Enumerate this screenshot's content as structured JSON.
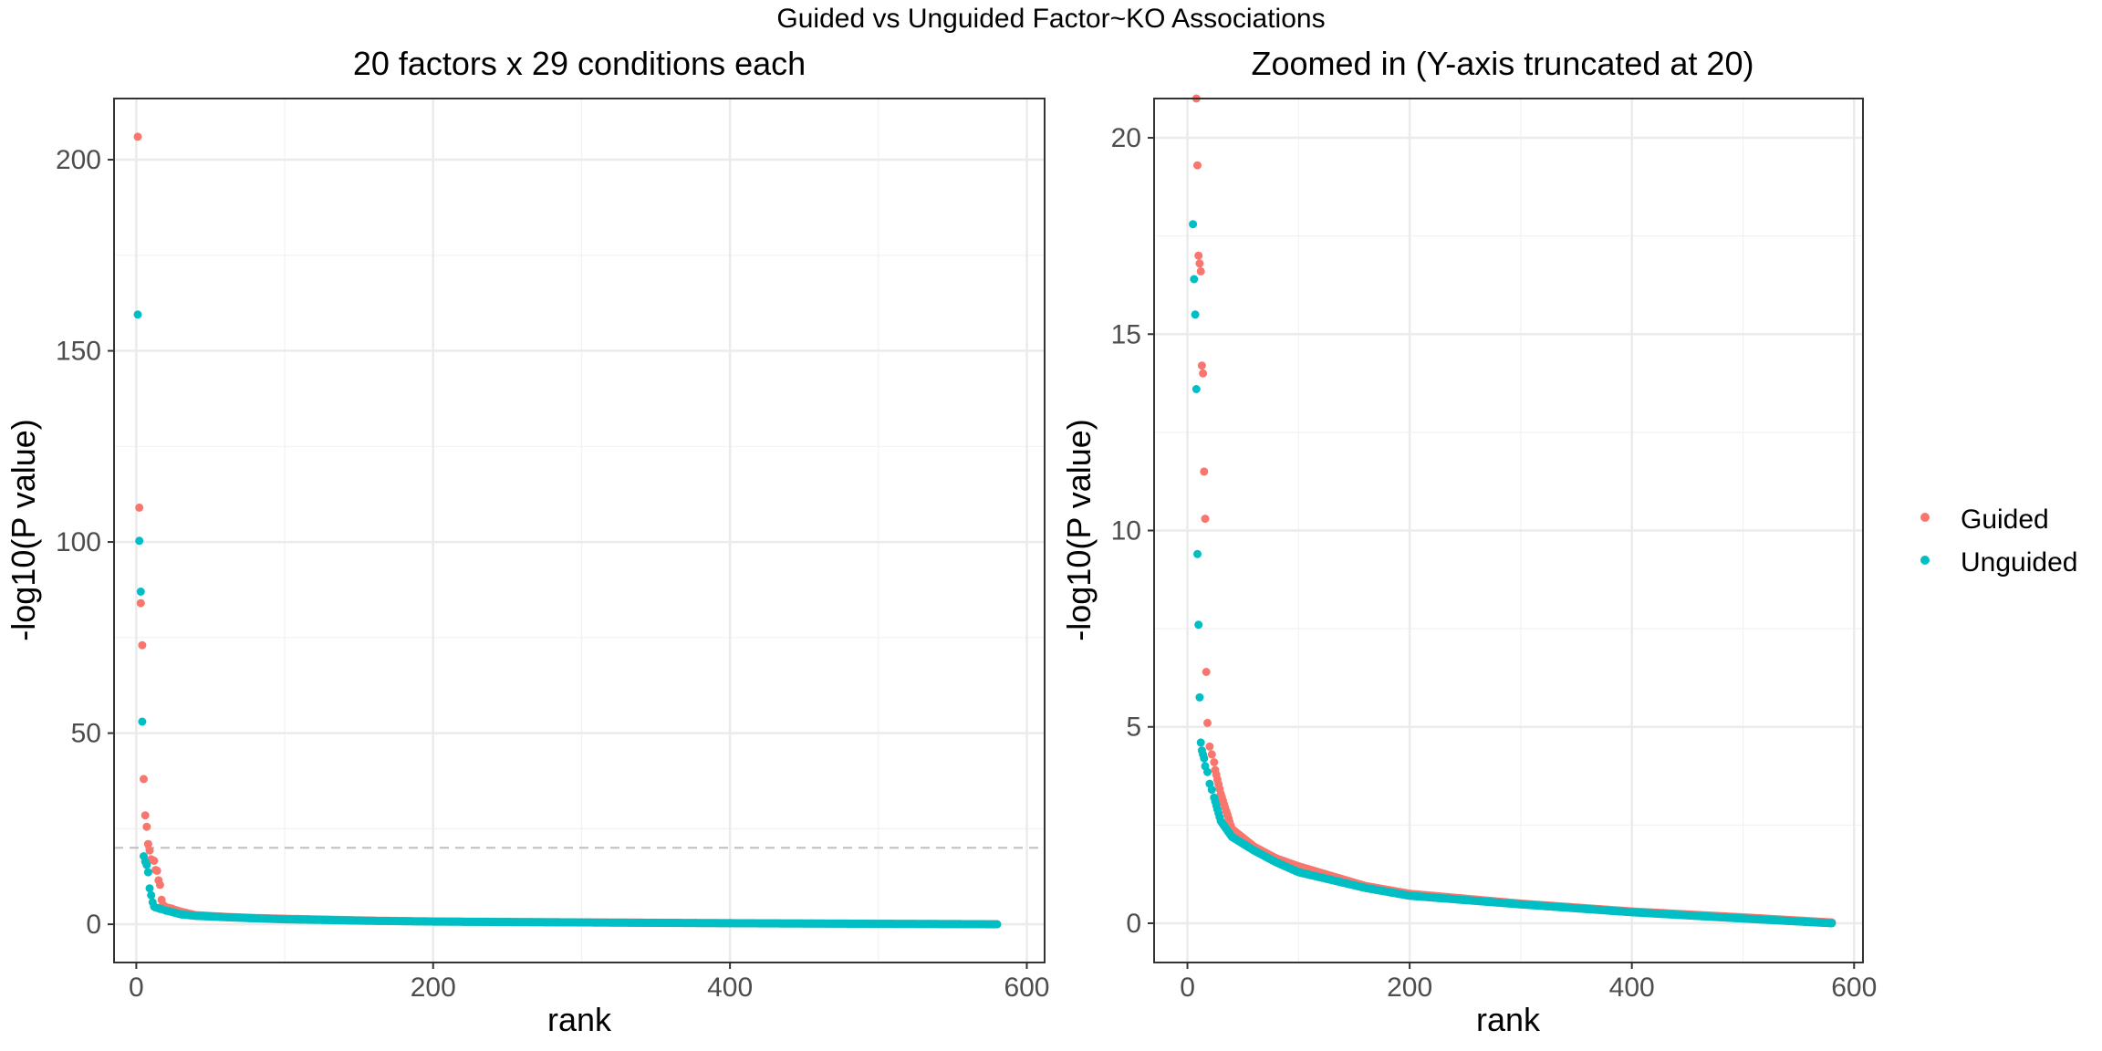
{
  "figure": {
    "title": "Guided vs Unguided Factor~KO Associations"
  },
  "legend": {
    "position": "right",
    "items": [
      {
        "label": "Guided",
        "color": "#F8766D"
      },
      {
        "label": "Unguided",
        "color": "#00BFC4"
      }
    ]
  },
  "chart_data": [
    {
      "type": "scatter",
      "title": "20 factors x 29 conditions each",
      "xlabel": "rank",
      "ylabel": "-log10(P value)",
      "xlim": [
        -15,
        612
      ],
      "ylim": [
        -10,
        216
      ],
      "xticks": [
        0,
        200,
        400,
        600
      ],
      "yticks": [
        0,
        50,
        100,
        150,
        200
      ],
      "grid": true,
      "reference_line": {
        "y": 20,
        "style": "dashed",
        "color": "#BEBEBE"
      },
      "n_points_per_series": 580,
      "series": [
        {
          "name": "Guided",
          "color": "#F8766D",
          "points": [
            [
              1,
              206
            ],
            [
              2,
              109
            ],
            [
              3,
              84
            ],
            [
              4,
              73
            ],
            [
              5,
              38
            ],
            [
              6,
              28.5
            ],
            [
              7,
              25.5
            ],
            [
              8,
              21
            ],
            [
              9,
              19.3
            ],
            [
              10,
              17
            ],
            [
              11,
              16.8
            ],
            [
              12,
              16.6
            ],
            [
              13,
              14.2
            ],
            [
              14,
              14
            ],
            [
              15,
              11.5
            ],
            [
              16,
              10.3
            ],
            [
              17,
              6.4
            ],
            [
              18,
              5.1
            ],
            [
              20,
              4.5
            ],
            [
              22,
              4.3
            ],
            [
              24,
              4.1
            ]
          ],
          "tail": [
            [
              25,
              3.9
            ],
            [
              30,
              3.3
            ],
            [
              40,
              2.4
            ],
            [
              60,
              1.95
            ],
            [
              80,
              1.65
            ],
            [
              100,
              1.45
            ],
            [
              130,
              1.2
            ],
            [
              160,
              0.95
            ],
            [
              200,
              0.75
            ],
            [
              300,
              0.5
            ],
            [
              400,
              0.3
            ],
            [
              500,
              0.15
            ],
            [
              580,
              0.02
            ]
          ]
        },
        {
          "name": "Unguided",
          "color": "#00BFC4",
          "points": [
            [
              1,
              159.5
            ],
            [
              2,
              100.3
            ],
            [
              3,
              87
            ],
            [
              4,
              53
            ],
            [
              5,
              17.8
            ],
            [
              6,
              16.4
            ],
            [
              7,
              15.5
            ],
            [
              8,
              13.6
            ],
            [
              9,
              9.4
            ],
            [
              10,
              7.6
            ],
            [
              11,
              5.75
            ],
            [
              12,
              4.6
            ],
            [
              13,
              4.4
            ],
            [
              14,
              4.3
            ],
            [
              15,
              4.2
            ],
            [
              16,
              4.0
            ],
            [
              18,
              3.85
            ],
            [
              20,
              3.55
            ],
            [
              22,
              3.4
            ],
            [
              24,
              3.2
            ]
          ],
          "tail": [
            [
              25,
              3.1
            ],
            [
              30,
              2.6
            ],
            [
              40,
              2.2
            ],
            [
              60,
              1.85
            ],
            [
              80,
              1.55
            ],
            [
              100,
              1.3
            ],
            [
              130,
              1.1
            ],
            [
              160,
              0.9
            ],
            [
              200,
              0.7
            ],
            [
              300,
              0.48
            ],
            [
              400,
              0.28
            ],
            [
              500,
              0.12
            ],
            [
              580,
              0.0
            ]
          ]
        }
      ]
    },
    {
      "type": "scatter",
      "title": "Zoomed in (Y-axis truncated at 20)",
      "xlabel": "rank",
      "ylabel": "-log10(P value)",
      "xlim": [
        -30,
        608
      ],
      "ylim": [
        -1,
        21
      ],
      "xticks": [
        0,
        200,
        400,
        600
      ],
      "yticks": [
        0,
        5,
        10,
        15,
        20
      ],
      "grid": true,
      "truncated_at": 20,
      "series_ref": [
        "Guided",
        "Unguided"
      ]
    }
  ]
}
